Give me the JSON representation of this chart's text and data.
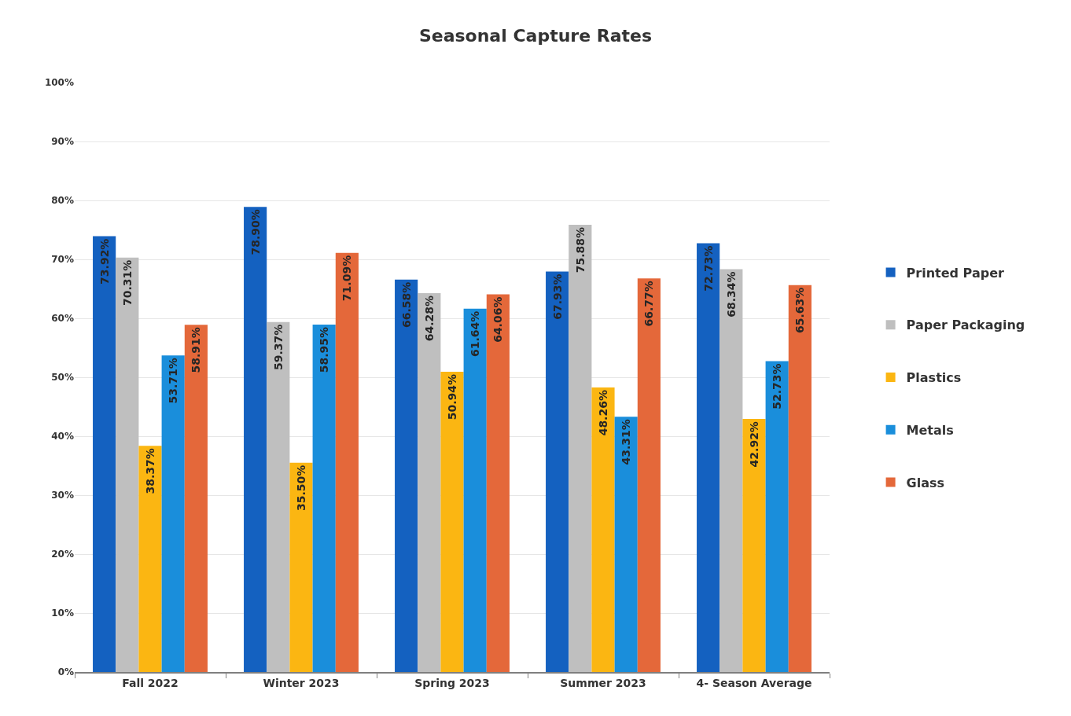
{
  "chart_data": {
    "type": "bar",
    "title": "Seasonal Capture Rates",
    "categories": [
      "Fall 2022",
      "Winter 2023",
      "Spring 2023",
      "Summer 2023",
      "4- Season Average"
    ],
    "series": [
      {
        "name": "Printed Paper",
        "color": "#1461c0",
        "values": [
          73.92,
          78.9,
          66.58,
          67.93,
          72.73
        ],
        "value_labels": [
          "73.92%",
          "78.90%",
          "66.58%",
          "67.93%",
          "72.73%"
        ]
      },
      {
        "name": "Paper Packaging",
        "color": "#bfbfbf",
        "values": [
          70.31,
          59.37,
          64.28,
          75.88,
          68.34
        ],
        "value_labels": [
          "70.31%",
          "59.37%",
          "64.28%",
          "75.88%",
          "68.34%"
        ]
      },
      {
        "name": "Plastics",
        "color": "#fbb612",
        "values": [
          38.37,
          35.5,
          50.94,
          48.26,
          42.92
        ],
        "value_labels": [
          "38.37%",
          "35.50%",
          "50.94%",
          "48.26%",
          "42.92%"
        ]
      },
      {
        "name": "Metals",
        "color": "#1a8edb",
        "values": [
          53.71,
          58.95,
          61.64,
          43.31,
          52.73
        ],
        "value_labels": [
          "53.71%",
          "58.95%",
          "61.64%",
          "43.31%",
          "52.73%"
        ]
      },
      {
        "name": "Glass",
        "color": "#e4683a",
        "values": [
          58.91,
          71.09,
          64.06,
          66.77,
          65.63
        ],
        "value_labels": [
          "58.91%",
          "71.09%",
          "64.06%",
          "66.77%",
          "65.63%"
        ]
      }
    ],
    "ylim": [
      0,
      100
    ],
    "yticks": [
      {
        "value": 0,
        "label": "0%"
      },
      {
        "value": 10,
        "label": "10%"
      },
      {
        "value": 20,
        "label": "20%"
      },
      {
        "value": 30,
        "label": "30%"
      },
      {
        "value": 40,
        "label": "40%"
      },
      {
        "value": 50,
        "label": "50%"
      },
      {
        "value": 60,
        "label": "60%"
      },
      {
        "value": 70,
        "label": "70%"
      },
      {
        "value": 80,
        "label": "80%"
      },
      {
        "value": 90,
        "label": "90%"
      },
      {
        "value": 100,
        "label": "100%"
      }
    ],
    "grid": "y",
    "legend": "right"
  }
}
